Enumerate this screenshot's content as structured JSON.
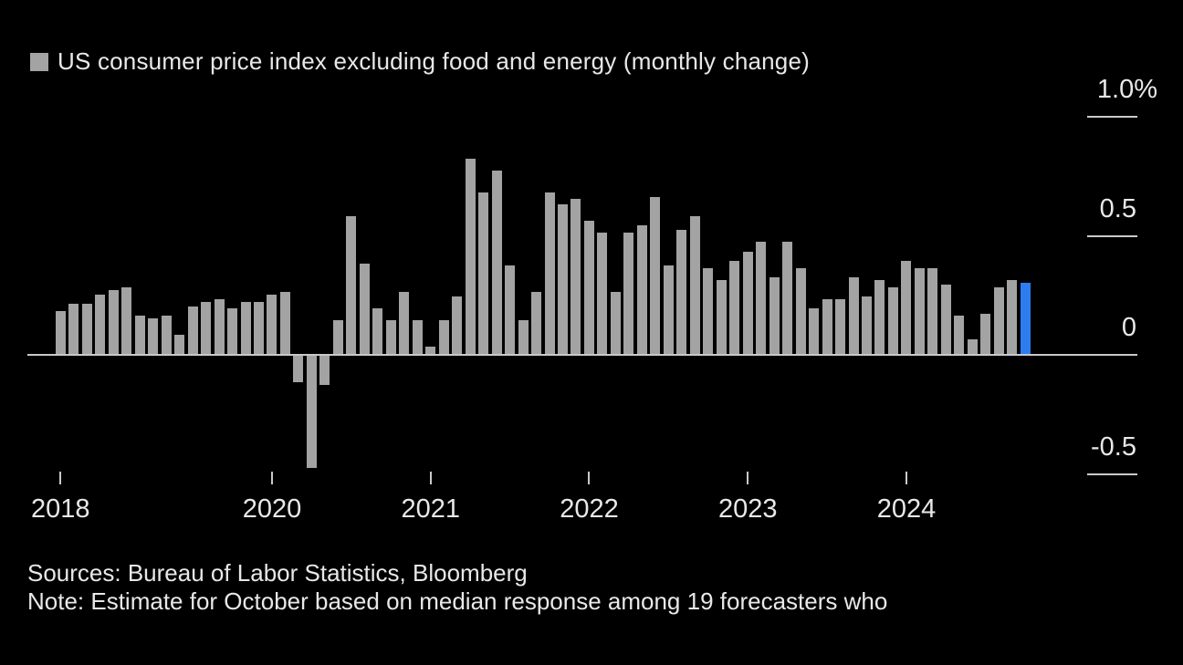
{
  "legend": {
    "swatch_color": "#a3a3a3",
    "label": "US consumer price index excluding food and energy (monthly change)"
  },
  "chart_data": {
    "type": "bar",
    "title": "US consumer price index excluding food and energy (monthly change)",
    "unit": "%",
    "bar_color": "#a3a3a3",
    "highlight": {
      "index": 73,
      "color": "#2d7df0"
    },
    "axis_color": "#c9c9c9",
    "label_color": "#e8e8e8",
    "legend_position": "top-left",
    "grid": "right-side-ticks",
    "ylim": [
      -0.6,
      1.15
    ],
    "x": [
      "2018-09",
      "2018-10",
      "2018-11",
      "2018-12",
      "2019-01",
      "2019-02",
      "2019-03",
      "2019-04",
      "2019-05",
      "2019-06",
      "2019-07",
      "2019-08",
      "2019-09",
      "2019-10",
      "2019-11",
      "2019-12",
      "2020-01",
      "2020-02",
      "2020-03",
      "2020-04",
      "2020-05",
      "2020-06",
      "2020-07",
      "2020-08",
      "2020-09",
      "2020-10",
      "2020-11",
      "2020-12",
      "2021-01",
      "2021-02",
      "2021-03",
      "2021-04",
      "2021-05",
      "2021-06",
      "2021-07",
      "2021-08",
      "2021-09",
      "2021-10",
      "2021-11",
      "2021-12",
      "2022-01",
      "2022-02",
      "2022-03",
      "2022-04",
      "2022-05",
      "2022-06",
      "2022-07",
      "2022-08",
      "2022-09",
      "2022-10",
      "2022-11",
      "2022-12",
      "2023-01",
      "2023-02",
      "2023-03",
      "2023-04",
      "2023-05",
      "2023-06",
      "2023-07",
      "2023-08",
      "2023-09",
      "2023-10",
      "2023-11",
      "2023-12",
      "2024-01",
      "2024-02",
      "2024-03",
      "2024-04",
      "2024-05",
      "2024-06",
      "2024-07",
      "2024-08",
      "2024-09",
      "2024-10"
    ],
    "values": [
      0.18,
      0.21,
      0.21,
      0.25,
      0.27,
      0.28,
      0.16,
      0.15,
      0.16,
      0.08,
      0.2,
      0.22,
      0.23,
      0.19,
      0.22,
      0.22,
      0.25,
      0.26,
      -0.12,
      -0.48,
      -0.13,
      0.14,
      0.58,
      0.38,
      0.19,
      0.14,
      0.26,
      0.14,
      0.03,
      0.14,
      0.24,
      0.82,
      0.68,
      0.77,
      0.37,
      0.14,
      0.26,
      0.68,
      0.63,
      0.65,
      0.56,
      0.51,
      0.26,
      0.51,
      0.54,
      0.66,
      0.37,
      0.52,
      0.58,
      0.36,
      0.31,
      0.39,
      0.43,
      0.47,
      0.32,
      0.47,
      0.36,
      0.19,
      0.23,
      0.23,
      0.32,
      0.24,
      0.31,
      0.28,
      0.39,
      0.36,
      0.36,
      0.29,
      0.16,
      0.06,
      0.17,
      0.28,
      0.31,
      0.3
    ],
    "y_ticks": [
      {
        "value": 1.0,
        "label": "1.0%"
      },
      {
        "value": 0.5,
        "label": "0.5"
      },
      {
        "value": 0,
        "label": "0"
      },
      {
        "value": -0.5,
        "label": "-0.5"
      }
    ],
    "x_ticks": [
      {
        "index": 0,
        "label": "2018"
      },
      {
        "index": 16,
        "label": "2020"
      },
      {
        "index": 28,
        "label": "2021"
      },
      {
        "index": 40,
        "label": "2022"
      },
      {
        "index": 52,
        "label": "2023"
      },
      {
        "index": 64,
        "label": "2024"
      }
    ]
  },
  "footer": {
    "sources": "Sources: Bureau of Labor Statistics, Bloomberg",
    "note": "Note: Estimate for October based on median response among 19 forecasters who"
  }
}
